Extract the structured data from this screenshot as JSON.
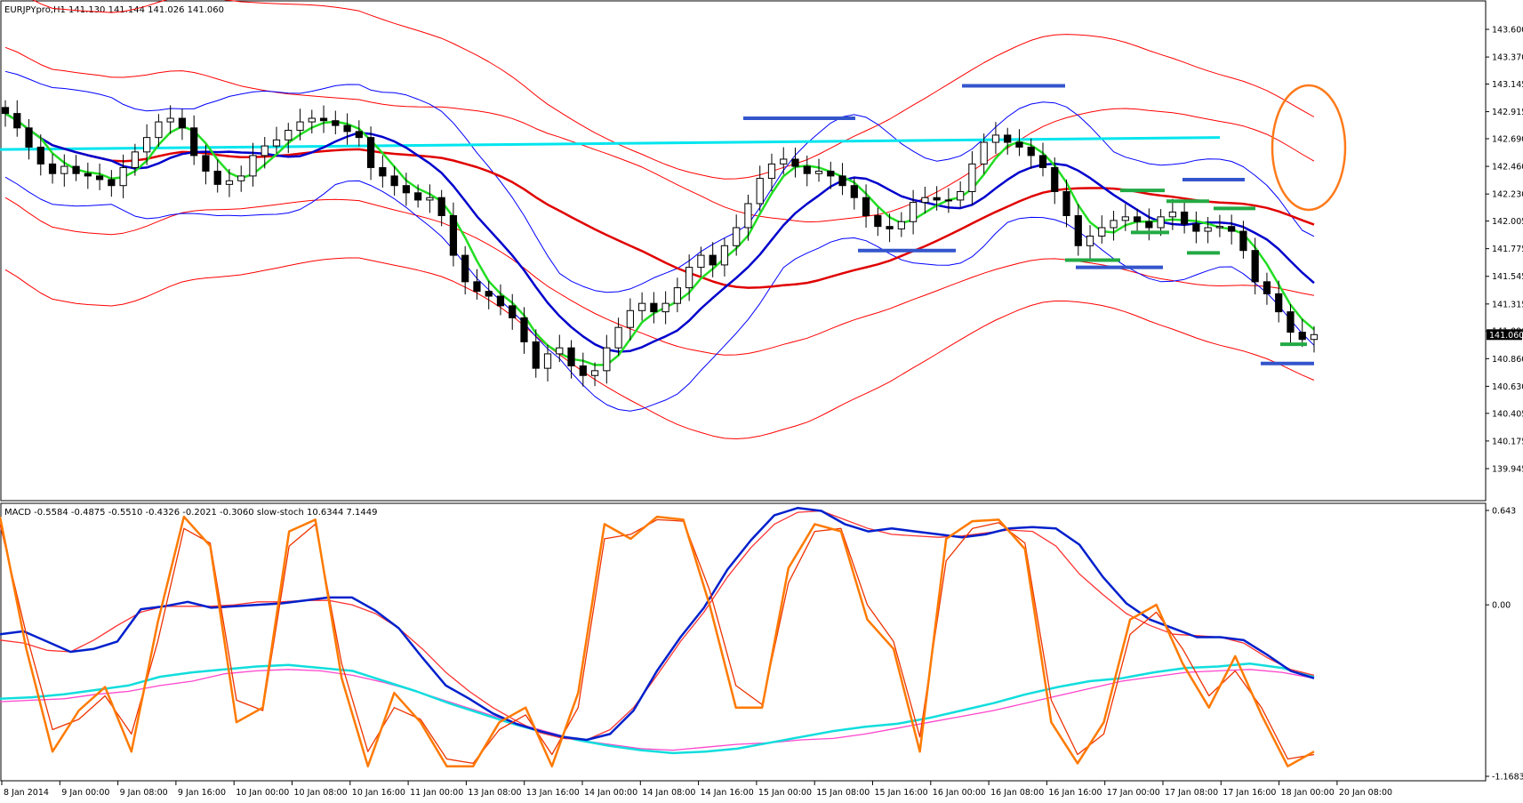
{
  "window": {
    "main_info": "EURJPYpro,H1  141.130 141.144 141.026 141.060",
    "sub_info": "MACD -0.5584 -0.4875 -0.5510 -0.4326 -0.2021 -0.3060  slow-stoch 10.6344 7.1449"
  },
  "colors": {
    "candle_bull": "#ffffff",
    "candle_bear": "#000000",
    "bb_red": "#ff0000",
    "bb_blue": "#0000ff",
    "sma_red": "#e00000",
    "ema_blue": "#0000cc",
    "ema_green": "#22dd22",
    "horizontal_cyan": "#00e5ee",
    "resistance_blue": "#3355cc",
    "support_green": "#22aa44",
    "circle": "#ff7a1a",
    "macd_blue": "#0020cc",
    "macd_signal_red": "#ff3333",
    "slow_cyan": "#11dddd",
    "slow_magenta": "#ff44cc",
    "stoch_orange": "#ff7a00",
    "stoch_signal": "#ee3300",
    "price_tag_bg": "#000000"
  },
  "chart_data": [
    {
      "type": "line",
      "symbol": "EURJPYpro",
      "timeframe": "H1",
      "ohlc_last": {
        "open": 141.13,
        "high": 141.144,
        "low": 141.026,
        "close": 141.06
      },
      "ylim": [
        139.945,
        143.7
      ],
      "y_ticks": [
        "143.600",
        "143.370",
        "143.145",
        "142.915",
        "142.690",
        "142.460",
        "142.230",
        "142.005",
        "141.775",
        "141.545",
        "141.315",
        "141.090",
        "140.860",
        "140.630",
        "140.405",
        "140.175",
        "139.945"
      ],
      "current_price_label": "141.060",
      "x_ticks": [
        "8 Jan 2014",
        "9 Jan 00:00",
        "9 Jan 08:00",
        "9 Jan 16:00",
        "10 Jan 00:00",
        "10 Jan 08:00",
        "10 Jan 16:00",
        "11 Jan 00:00",
        "13 Jan 08:00",
        "13 Jan 16:00",
        "14 Jan 00:00",
        "14 Jan 08:00",
        "14 Jan 16:00",
        "15 Jan 00:00",
        "15 Jan 08:00",
        "15 Jan 16:00",
        "16 Jan 00:00",
        "16 Jan 08:00",
        "16 Jan 16:00",
        "17 Jan 00:00",
        "17 Jan 08:00",
        "17 Jan 16:00",
        "18 Jan 00:00",
        "20 Jan 08:00"
      ],
      "close_path": [
        142.9,
        142.78,
        142.62,
        142.48,
        142.4,
        142.46,
        142.4,
        142.38,
        142.35,
        142.3,
        142.45,
        142.58,
        142.7,
        142.83,
        142.86,
        142.78,
        142.55,
        142.42,
        142.31,
        142.34,
        142.38,
        142.55,
        142.63,
        142.68,
        142.76,
        142.83,
        142.86,
        142.84,
        142.8,
        142.75,
        142.7,
        142.45,
        142.38,
        142.3,
        142.24,
        142.18,
        142.2,
        142.05,
        141.72,
        141.5,
        141.42,
        141.38,
        141.3,
        141.2,
        141.0,
        140.78,
        140.9,
        140.95,
        140.8,
        140.72,
        140.76,
        140.95,
        141.12,
        141.26,
        141.32,
        141.25,
        141.32,
        141.45,
        141.62,
        141.72,
        141.64,
        141.8,
        141.95,
        142.15,
        142.36,
        142.48,
        142.52,
        142.46,
        142.4,
        142.42,
        142.38,
        142.3,
        142.2,
        142.05,
        141.96,
        141.94,
        142.0,
        142.16,
        142.2,
        142.18,
        142.18,
        142.25,
        142.48,
        142.66,
        142.72,
        142.66,
        142.62,
        142.55,
        142.45,
        142.25,
        142.05,
        141.8,
        141.88,
        141.95,
        142.01,
        142.04,
        142.0,
        141.95,
        142.04,
        142.08,
        141.98,
        141.92,
        141.95,
        141.96,
        141.92,
        141.76,
        141.5,
        141.4,
        141.25,
        141.08,
        141.02,
        141.06
      ]
    },
    {
      "type": "line",
      "indicator": "MACD / slow-stoch",
      "ylim": [
        -1.1683,
        0.643
      ],
      "y_ticks": [
        "0.643",
        "0.00",
        "-1.1683"
      ],
      "macd_main": [
        -0.2,
        -0.18,
        -0.25,
        -0.32,
        -0.3,
        -0.25,
        -0.03,
        -0.01,
        0.02,
        -0.02,
        -0.01,
        0.0,
        0.01,
        0.03,
        0.05,
        0.05,
        -0.04,
        -0.16,
        -0.36,
        -0.55,
        -0.64,
        -0.74,
        -0.81,
        -0.86,
        -0.9,
        -0.92,
        -0.88,
        -0.72,
        -0.45,
        -0.22,
        -0.02,
        0.24,
        0.44,
        0.61,
        0.66,
        0.64,
        0.55,
        0.5,
        0.52,
        0.5,
        0.48,
        0.46,
        0.48,
        0.52,
        0.53,
        0.52,
        0.41,
        0.19,
        0.01,
        -0.1,
        -0.16,
        -0.22,
        -0.22,
        -0.24,
        -0.34,
        -0.45,
        -0.5
      ],
      "macd_signal": [
        -0.24,
        -0.26,
        -0.31,
        -0.32,
        -0.24,
        -0.14,
        -0.05,
        -0.01,
        -0.01,
        -0.01,
        0.0,
        0.02,
        0.02,
        0.03,
        0.03,
        0.0,
        -0.06,
        -0.16,
        -0.3,
        -0.46,
        -0.59,
        -0.7,
        -0.79,
        -0.87,
        -0.91,
        -0.92,
        -0.85,
        -0.7,
        -0.48,
        -0.25,
        -0.05,
        0.19,
        0.39,
        0.55,
        0.63,
        0.64,
        0.58,
        0.52,
        0.48,
        0.47,
        0.46,
        0.47,
        0.49,
        0.51,
        0.5,
        0.4,
        0.21,
        0.07,
        -0.06,
        -0.14,
        -0.2,
        -0.21,
        -0.22,
        -0.26,
        -0.36,
        -0.44,
        -0.48
      ],
      "slow_cyan": [
        -0.64,
        -0.63,
        -0.61,
        -0.58,
        -0.55,
        -0.49,
        -0.46,
        -0.44,
        -0.42,
        -0.41,
        -0.43,
        -0.45,
        -0.52,
        -0.59,
        -0.67,
        -0.74,
        -0.81,
        -0.87,
        -0.92,
        -0.96,
        -0.99,
        -1.01,
        -1.0,
        -0.98,
        -0.94,
        -0.9,
        -0.86,
        -0.83,
        -0.81,
        -0.77,
        -0.72,
        -0.67,
        -0.61,
        -0.56,
        -0.52,
        -0.5,
        -0.46,
        -0.43,
        -0.42,
        -0.4,
        -0.43,
        -0.49
      ],
      "slow_magenta": [
        -0.66,
        -0.65,
        -0.64,
        -0.61,
        -0.59,
        -0.55,
        -0.52,
        -0.47,
        -0.45,
        -0.44,
        -0.45,
        -0.48,
        -0.53,
        -0.59,
        -0.66,
        -0.73,
        -0.8,
        -0.86,
        -0.92,
        -0.95,
        -0.98,
        -0.99,
        -0.97,
        -0.95,
        -0.94,
        -0.92,
        -0.91,
        -0.88,
        -0.84,
        -0.8,
        -0.76,
        -0.72,
        -0.67,
        -0.62,
        -0.57,
        -0.52,
        -0.49,
        -0.46,
        -0.45,
        -0.44,
        -0.46,
        -0.5
      ],
      "stoch_main": [
        0.6,
        -0.3,
        -1.0,
        -0.72,
        -0.56,
        -1.0,
        -0.12,
        0.6,
        0.4,
        -0.8,
        -0.7,
        0.5,
        0.58,
        -0.5,
        -1.1,
        -0.6,
        -0.8,
        -1.1,
        -1.1,
        -0.8,
        -0.7,
        -1.1,
        -0.6,
        0.55,
        0.45,
        0.6,
        0.58,
        0.0,
        -0.7,
        -0.7,
        0.25,
        0.55,
        0.5,
        -0.1,
        -0.3,
        -1.0,
        0.45,
        0.57,
        0.58,
        0.38,
        -0.8,
        -1.08,
        -0.8,
        -0.1,
        0.0,
        -0.4,
        -0.7,
        -0.35,
        -0.75,
        -1.1,
        -1.0
      ],
      "stoch_signal": [
        0.55,
        -0.2,
        -0.85,
        -0.78,
        -0.62,
        -0.88,
        -0.25,
        0.52,
        0.42,
        -0.65,
        -0.72,
        0.4,
        0.55,
        -0.4,
        -1.0,
        -0.7,
        -0.78,
        -1.05,
        -1.08,
        -0.85,
        -0.75,
        -1.02,
        -0.7,
        0.45,
        0.48,
        0.58,
        0.57,
        0.1,
        -0.55,
        -0.68,
        0.15,
        0.5,
        0.52,
        0.0,
        -0.25,
        -0.9,
        0.3,
        0.52,
        0.56,
        0.42,
        -0.65,
        -1.02,
        -0.88,
        -0.2,
        -0.05,
        -0.3,
        -0.62,
        -0.45,
        -0.7,
        -1.05,
        -1.02
      ]
    }
  ]
}
